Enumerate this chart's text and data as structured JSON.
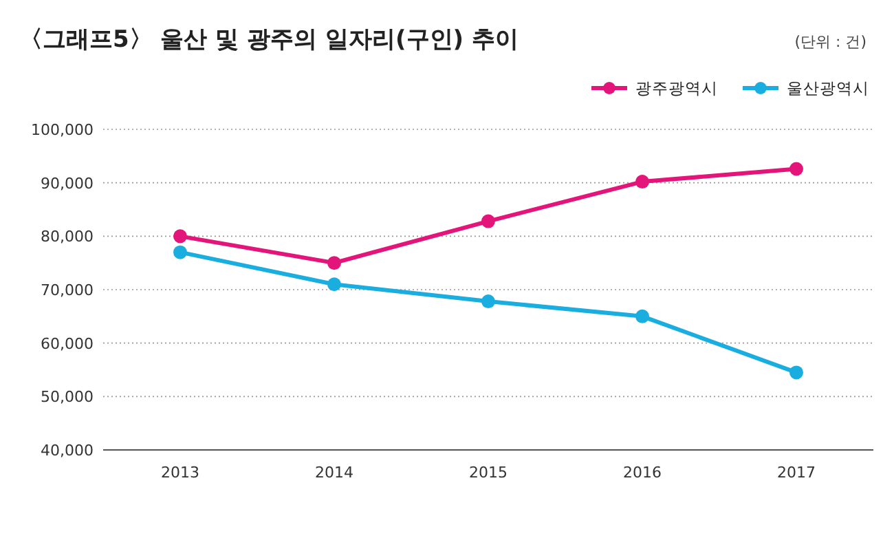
{
  "chart_data": {
    "type": "line",
    "title": "〈그래프5〉 울산 및 광주의 일자리(구인) 추이",
    "annotations": [
      "(단위 : 건)"
    ],
    "categories": [
      "2013",
      "2014",
      "2015",
      "2016",
      "2017"
    ],
    "series": [
      {
        "name": "광주광역시",
        "color": "#e4157a",
        "values": [
          80000,
          75000,
          82800,
          90200,
          92600
        ]
      },
      {
        "name": "울산광역시",
        "color": "#1aaee0",
        "values": [
          77000,
          71000,
          67800,
          65000,
          54500
        ]
      }
    ],
    "ylim": [
      40000,
      100000
    ],
    "yticks": [
      {
        "value": 40000,
        "label": "40,000"
      },
      {
        "value": 50000,
        "label": "50,000"
      },
      {
        "value": 60000,
        "label": "60,000"
      },
      {
        "value": 70000,
        "label": "70,000"
      },
      {
        "value": 80000,
        "label": "80,000"
      },
      {
        "value": 90000,
        "label": "90,000"
      },
      {
        "value": 100000,
        "label": "100,000"
      }
    ],
    "grid": "y",
    "legend": "top right",
    "marker": "circle",
    "line_style": "solid"
  }
}
